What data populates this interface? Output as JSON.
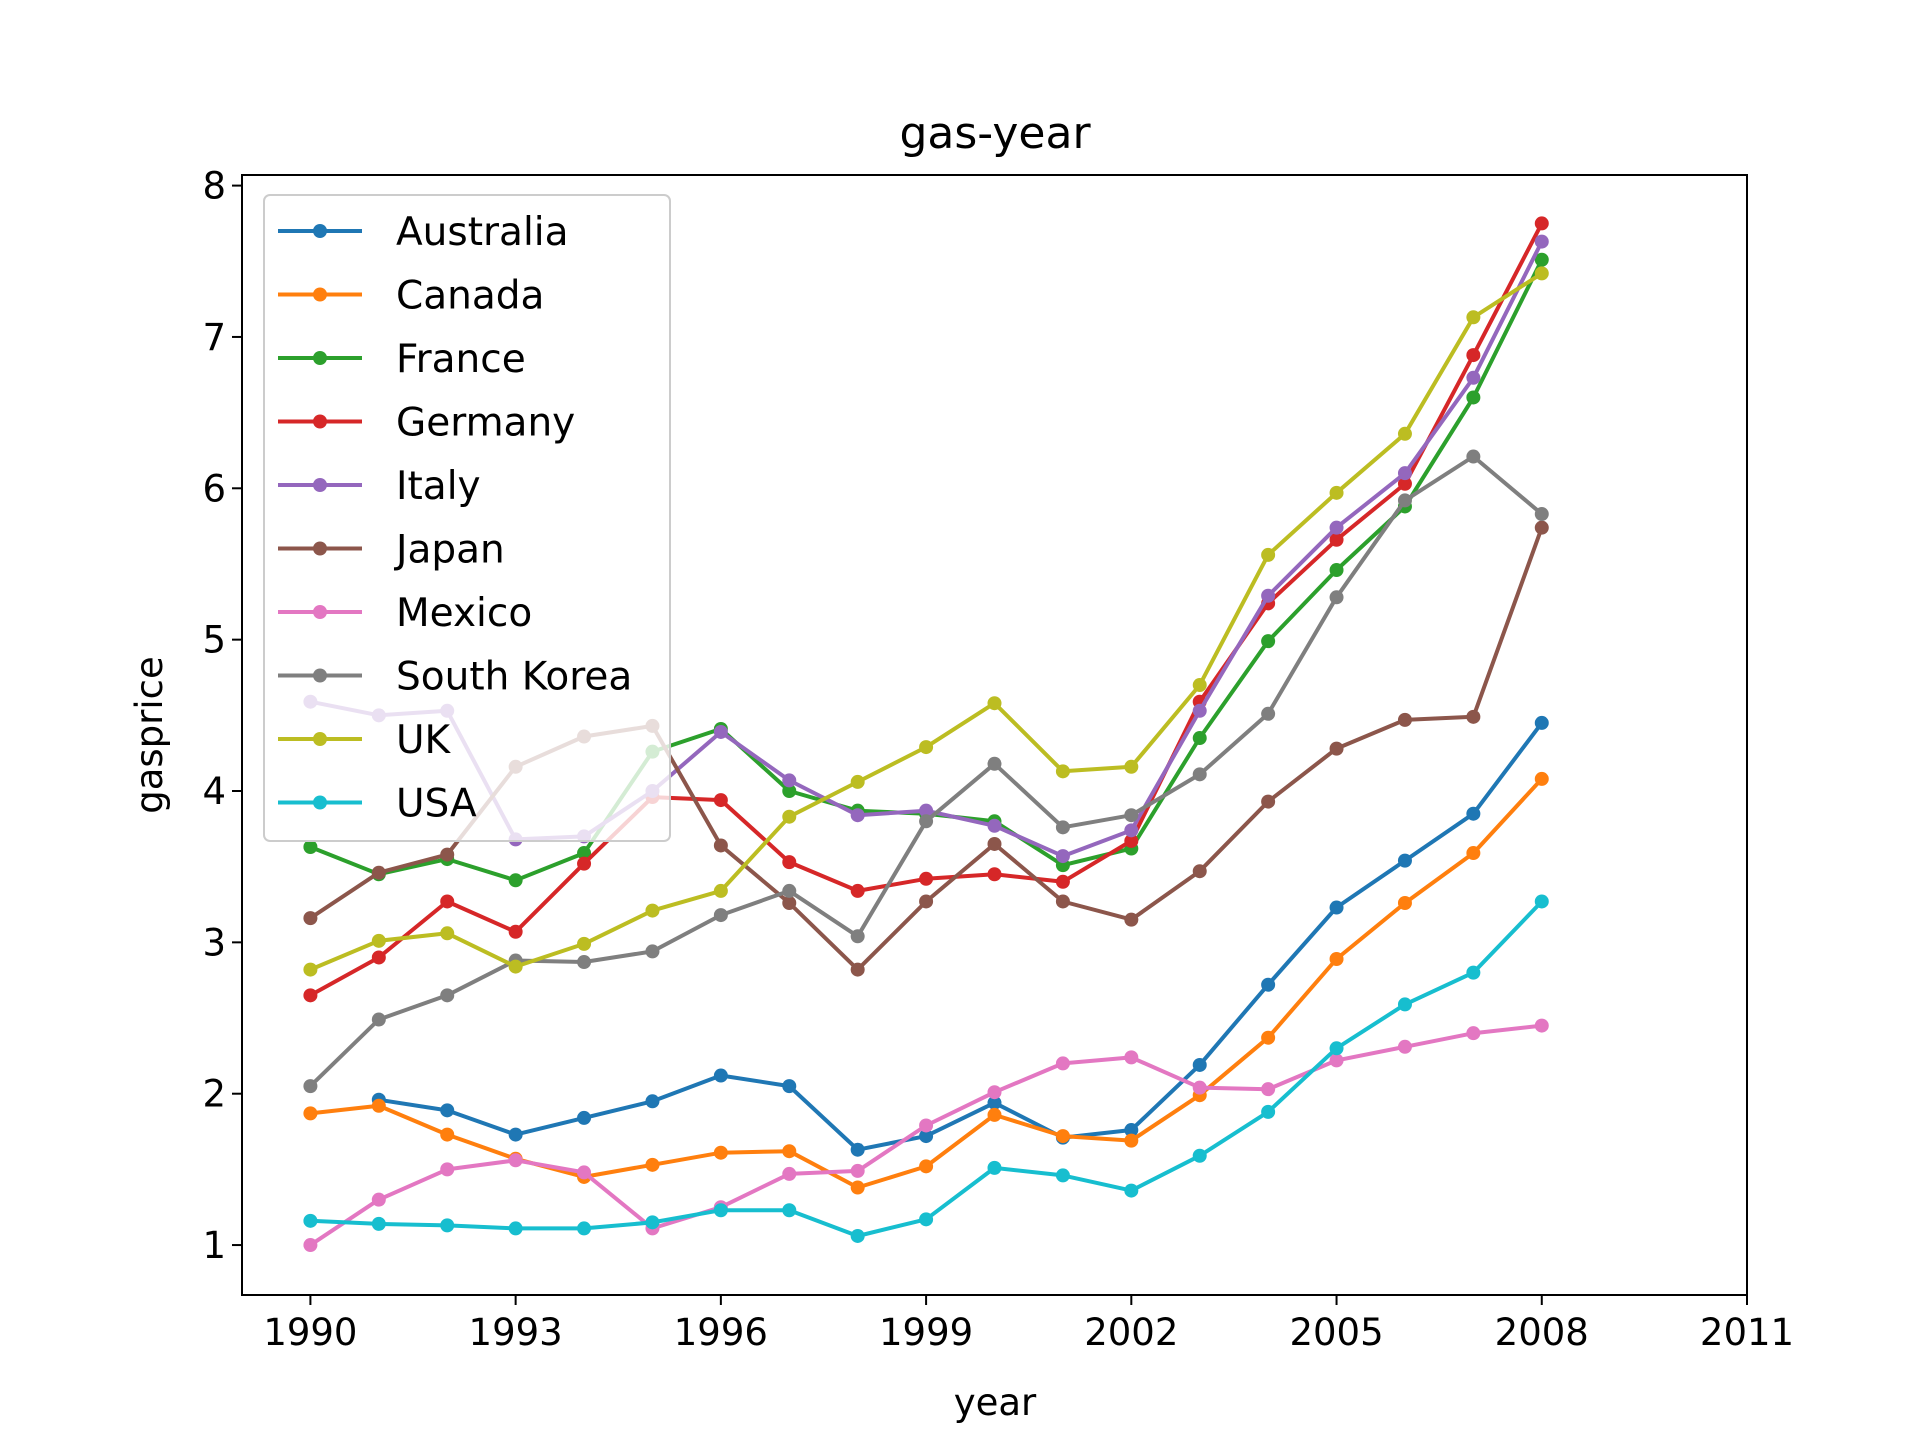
{
  "chart_data": {
    "type": "line",
    "title": "gas-year",
    "xlabel": "year",
    "ylabel": "gasprice",
    "xlim": [
      1989,
      2011
    ],
    "ylim": [
      0.67,
      8.07
    ],
    "xticks": [
      1990,
      1993,
      1996,
      1999,
      2002,
      2005,
      2008,
      2011
    ],
    "yticks": [
      1,
      2,
      3,
      4,
      5,
      6,
      7,
      8
    ],
    "grid": false,
    "legend_position": "upper-left",
    "x": [
      1990,
      1991,
      1992,
      1993,
      1994,
      1995,
      1996,
      1997,
      1998,
      1999,
      2000,
      2001,
      2002,
      2003,
      2004,
      2005,
      2006,
      2007,
      2008
    ],
    "series": [
      {
        "name": "Australia",
        "color": "#1f77b4",
        "values": [
          null,
          1.96,
          1.89,
          1.73,
          1.84,
          1.95,
          2.12,
          2.05,
          1.63,
          1.72,
          1.94,
          1.71,
          1.76,
          2.19,
          2.72,
          3.23,
          3.54,
          3.85,
          4.45
        ]
      },
      {
        "name": "Canada",
        "color": "#ff7f0e",
        "values": [
          1.87,
          1.92,
          1.73,
          1.57,
          1.45,
          1.53,
          1.61,
          1.62,
          1.38,
          1.52,
          1.86,
          1.72,
          1.69,
          1.99,
          2.37,
          2.89,
          3.26,
          3.59,
          4.08
        ]
      },
      {
        "name": "France",
        "color": "#2ca02c",
        "values": [
          3.63,
          3.45,
          3.55,
          3.41,
          3.59,
          4.26,
          4.41,
          4.0,
          3.87,
          3.85,
          3.8,
          3.51,
          3.62,
          4.35,
          4.99,
          5.46,
          5.88,
          6.6,
          7.51
        ]
      },
      {
        "name": "Germany",
        "color": "#d62728",
        "values": [
          2.65,
          2.9,
          3.27,
          3.07,
          3.52,
          3.96,
          3.94,
          3.53,
          3.34,
          3.42,
          3.45,
          3.4,
          3.67,
          4.59,
          5.24,
          5.66,
          6.03,
          6.88,
          7.75
        ]
      },
      {
        "name": "Italy",
        "color": "#9467bd",
        "values": [
          4.59,
          4.5,
          4.53,
          3.68,
          3.7,
          4.0,
          4.39,
          4.07,
          3.84,
          3.87,
          3.77,
          3.57,
          3.74,
          4.53,
          5.29,
          5.74,
          6.1,
          6.73,
          7.63
        ]
      },
      {
        "name": "Japan",
        "color": "#8c564b",
        "values": [
          3.16,
          3.46,
          3.58,
          4.16,
          4.36,
          4.43,
          3.64,
          3.26,
          2.82,
          3.27,
          3.65,
          3.27,
          3.15,
          3.47,
          3.93,
          4.28,
          4.47,
          4.49,
          5.74
        ]
      },
      {
        "name": "Mexico",
        "color": "#e377c2",
        "values": [
          1.0,
          1.3,
          1.5,
          1.56,
          1.48,
          1.11,
          1.25,
          1.47,
          1.49,
          1.79,
          2.01,
          2.2,
          2.24,
          2.04,
          2.03,
          2.22,
          2.31,
          2.4,
          2.45
        ]
      },
      {
        "name": "South Korea",
        "color": "#7f7f7f",
        "values": [
          2.05,
          2.49,
          2.65,
          2.88,
          2.87,
          2.94,
          3.18,
          3.34,
          3.04,
          3.8,
          4.18,
          3.76,
          3.84,
          4.11,
          4.51,
          5.28,
          5.92,
          6.21,
          5.83
        ]
      },
      {
        "name": "UK",
        "color": "#bcbd22",
        "values": [
          2.82,
          3.01,
          3.06,
          2.84,
          2.99,
          3.21,
          3.34,
          3.83,
          4.06,
          4.29,
          4.58,
          4.13,
          4.16,
          4.7,
          5.56,
          5.97,
          6.36,
          7.13,
          7.42
        ]
      },
      {
        "name": "USA",
        "color": "#17becf",
        "values": [
          1.16,
          1.14,
          1.13,
          1.11,
          1.11,
          1.15,
          1.23,
          1.23,
          1.06,
          1.17,
          1.51,
          1.46,
          1.36,
          1.59,
          1.88,
          2.3,
          2.59,
          2.8,
          3.27
        ]
      }
    ]
  }
}
